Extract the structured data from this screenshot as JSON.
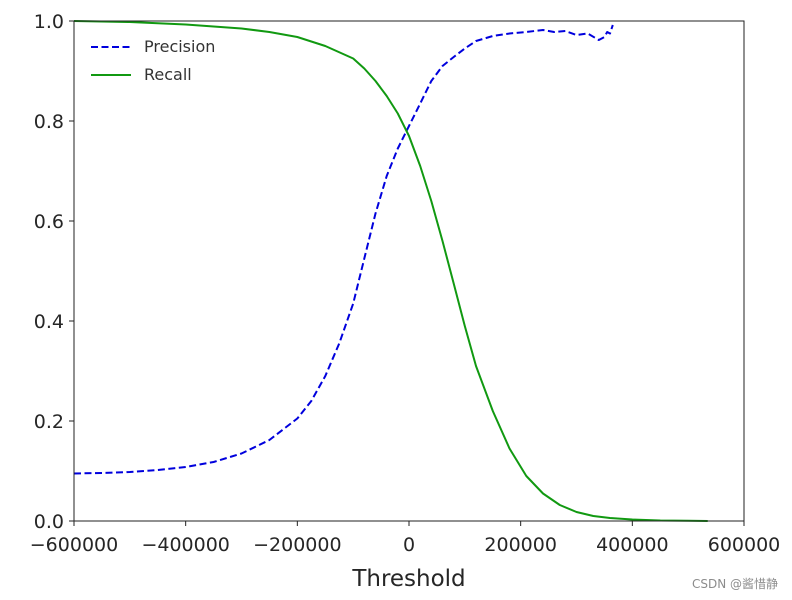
{
  "chart_data": {
    "type": "line",
    "title": "",
    "xlabel": "Threshold",
    "ylabel": "",
    "xlim": [
      -600000,
      600000
    ],
    "ylim": [
      0.0,
      1.0
    ],
    "xticks": [
      -600000,
      -400000,
      -200000,
      0,
      200000,
      400000,
      600000
    ],
    "xtick_labels": [
      "−600000",
      "−400000",
      "−200000",
      "0",
      "200000",
      "400000",
      "600000"
    ],
    "yticks": [
      0.0,
      0.2,
      0.4,
      0.6,
      0.8,
      1.0
    ],
    "ytick_labels": [
      "0.0",
      "0.2",
      "0.4",
      "0.6",
      "0.8",
      "1.0"
    ],
    "grid": false,
    "legend": {
      "position": "top-left"
    },
    "series": [
      {
        "name": "Precision",
        "color": "#0000dd",
        "style": "dashed",
        "x": [
          -600000,
          -550000,
          -500000,
          -450000,
          -400000,
          -350000,
          -300000,
          -250000,
          -200000,
          -175000,
          -150000,
          -125000,
          -100000,
          -80000,
          -60000,
          -40000,
          -20000,
          0,
          20000,
          40000,
          60000,
          80000,
          100000,
          120000,
          150000,
          180000,
          210000,
          240000,
          260000,
          280000,
          300000,
          320000,
          340000,
          350000,
          355000,
          360000,
          365000
        ],
        "y": [
          0.095,
          0.096,
          0.098,
          0.102,
          0.108,
          0.118,
          0.135,
          0.162,
          0.205,
          0.24,
          0.29,
          0.355,
          0.435,
          0.525,
          0.615,
          0.69,
          0.745,
          0.79,
          0.835,
          0.88,
          0.91,
          0.928,
          0.945,
          0.96,
          0.97,
          0.975,
          0.978,
          0.982,
          0.978,
          0.98,
          0.972,
          0.975,
          0.962,
          0.968,
          0.978,
          0.975,
          0.992
        ]
      },
      {
        "name": "Recall",
        "color": "#119911",
        "style": "solid",
        "x": [
          -600000,
          -500000,
          -400000,
          -300000,
          -250000,
          -200000,
          -150000,
          -100000,
          -80000,
          -60000,
          -40000,
          -20000,
          0,
          20000,
          40000,
          60000,
          80000,
          100000,
          120000,
          150000,
          180000,
          210000,
          240000,
          270000,
          300000,
          330000,
          360000,
          400000,
          450000,
          500000,
          535000
        ],
        "y": [
          1.0,
          0.998,
          0.993,
          0.985,
          0.978,
          0.968,
          0.95,
          0.925,
          0.905,
          0.88,
          0.85,
          0.815,
          0.77,
          0.71,
          0.64,
          0.56,
          0.475,
          0.39,
          0.31,
          0.22,
          0.145,
          0.09,
          0.055,
          0.032,
          0.018,
          0.01,
          0.006,
          0.003,
          0.001,
          0.0005,
          0.0
        ]
      }
    ]
  },
  "watermark": "CSDN @酱惜静"
}
